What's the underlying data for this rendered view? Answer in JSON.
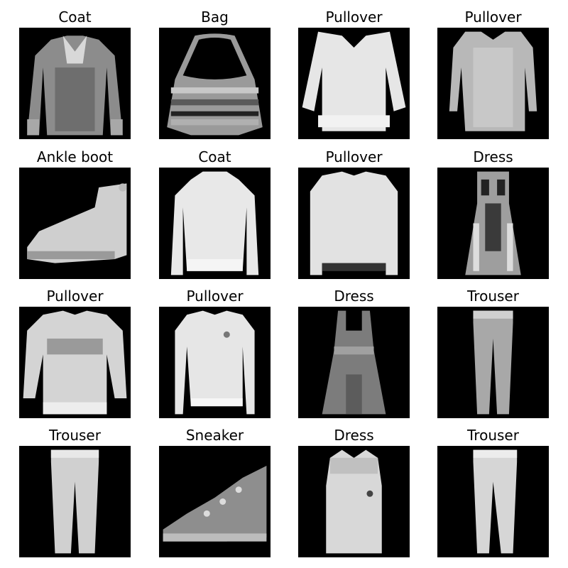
{
  "figure": {
    "background": "#ffffff",
    "image_background": "#000000",
    "colormap": "grayscale"
  },
  "items": [
    {
      "label": "Coat",
      "icon": "coat-icon"
    },
    {
      "label": "Bag",
      "icon": "bag-icon"
    },
    {
      "label": "Pullover",
      "icon": "pullover-icon"
    },
    {
      "label": "Pullover",
      "icon": "pullover-icon"
    },
    {
      "label": "Ankle boot",
      "icon": "ankle-boot-icon"
    },
    {
      "label": "Coat",
      "icon": "coat-icon"
    },
    {
      "label": "Pullover",
      "icon": "pullover-icon"
    },
    {
      "label": "Dress",
      "icon": "dress-icon"
    },
    {
      "label": "Pullover",
      "icon": "pullover-icon"
    },
    {
      "label": "Pullover",
      "icon": "pullover-icon"
    },
    {
      "label": "Dress",
      "icon": "dress-icon"
    },
    {
      "label": "Trouser",
      "icon": "trouser-icon"
    },
    {
      "label": "Trouser",
      "icon": "trouser-icon"
    },
    {
      "label": "Sneaker",
      "icon": "sneaker-icon"
    },
    {
      "label": "Dress",
      "icon": "dress-icon"
    },
    {
      "label": "Trouser",
      "icon": "trouser-icon"
    }
  ]
}
